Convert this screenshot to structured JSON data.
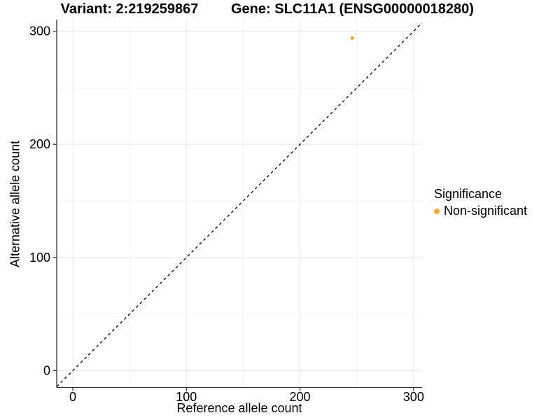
{
  "header": {
    "variant_title": "Variant: 2:219259867",
    "gene_title": "Gene: SLC11A1 (ENSG00000018280)"
  },
  "axes": {
    "x_label": "Reference allele count",
    "y_label": "Alternative allele count"
  },
  "legend": {
    "title": "Significance",
    "items": [
      {
        "label": "Non-significant",
        "color": "#FAA43A"
      }
    ]
  },
  "chart_data": {
    "type": "scatter",
    "titles": [
      "Variant: 2:219259867",
      "Gene: SLC11A1 (ENSG00000018280)"
    ],
    "xlabel": "Reference allele count",
    "ylabel": "Alternative allele count",
    "x_ticks": [
      0,
      100,
      200,
      300
    ],
    "y_ticks": [
      0,
      100,
      200,
      300
    ],
    "xlim": [
      -14.2,
      307.5
    ],
    "ylim": [
      -14.9,
      310.3
    ],
    "grid": {
      "major": true,
      "minor": true
    },
    "legend_position": "right",
    "series": [
      {
        "name": "Non-significant",
        "color": "#FAA43A",
        "points": [
          {
            "x": 246,
            "y": 294
          }
        ]
      }
    ],
    "reference_line": {
      "slope": 1,
      "intercept": 0,
      "style": "dashed",
      "color": "#000000",
      "description": "identity line y = x"
    },
    "style": {
      "point_color": "#FAA43A",
      "grid_major_color": "#E6E6E6",
      "grid_minor_color": "#F2F2F2",
      "axis_color": "#333333",
      "background": "#FFFFFF"
    }
  }
}
